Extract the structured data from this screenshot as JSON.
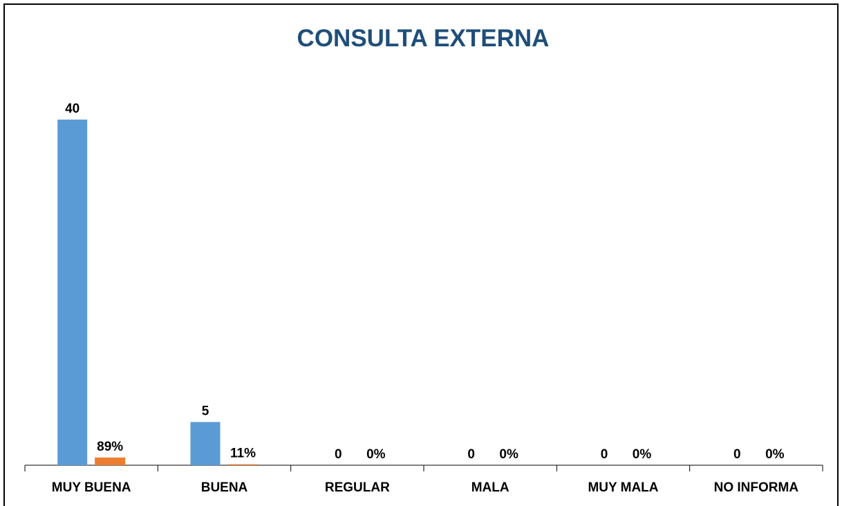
{
  "chart_data": {
    "type": "bar",
    "title": "CONSULTA EXTERNA",
    "categories": [
      "MUY BUENA",
      "BUENA",
      "REGULAR",
      "MALA",
      "MUY MALA",
      "NO INFORMA"
    ],
    "series": [
      {
        "color": "#5b9bd5",
        "values": [
          40,
          5,
          0,
          0,
          0,
          0
        ]
      },
      {
        "color": "#ed7d31",
        "values": [
          0.89,
          0.11,
          0,
          0,
          0,
          0
        ],
        "value_labels": [
          "89%",
          "11%",
          "0%",
          "0%",
          "0%",
          "0%"
        ]
      }
    ],
    "ylim": [
      0,
      40
    ]
  }
}
